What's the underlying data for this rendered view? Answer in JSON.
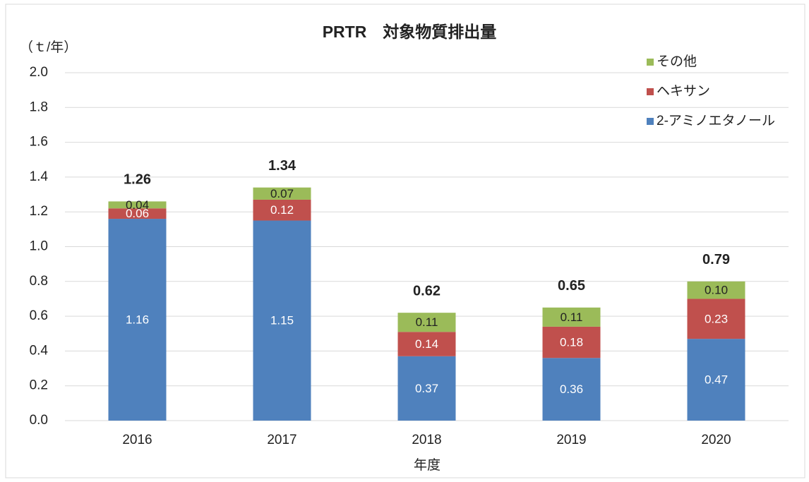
{
  "chart_data": {
    "type": "stacked_bar",
    "title": "PRTR　対象物質排出量",
    "y_label": "（ｔ/年）",
    "x_label": "年度",
    "categories": [
      "2016",
      "2017",
      "2018",
      "2019",
      "2020"
    ],
    "series": [
      {
        "name": "2-アミノエタノール",
        "color": "#4f81bd",
        "values": [
          1.16,
          1.15,
          0.37,
          0.36,
          0.47
        ]
      },
      {
        "name": "ヘキサン",
        "color": "#c0504d",
        "values": [
          0.06,
          0.12,
          0.14,
          0.18,
          0.23
        ]
      },
      {
        "name": "その他",
        "color": "#9bbb59",
        "values": [
          0.04,
          0.07,
          0.11,
          0.11,
          0.1
        ],
        "value_labels": [
          "0.04",
          "0.07",
          "0.11",
          "0.11",
          "0.10"
        ]
      }
    ],
    "totals": [
      1.26,
      1.34,
      0.62,
      0.65,
      0.79
    ],
    "ylim": [
      0,
      2
    ],
    "yticks": [
      {
        "value": 0,
        "label": "0.0"
      },
      {
        "value": 0.2,
        "label": "0.2"
      },
      {
        "value": 0.4,
        "label": "0.4"
      },
      {
        "value": 0.6,
        "label": "0.6"
      },
      {
        "value": 0.8,
        "label": "0.8"
      },
      {
        "value": 1,
        "label": "1.0"
      },
      {
        "value": 1.2,
        "label": "1.2"
      },
      {
        "value": 1.4,
        "label": "1.4"
      },
      {
        "value": 1.6,
        "label": "1.6"
      },
      {
        "value": 1.8,
        "label": "1.8"
      },
      {
        "value": 2,
        "label": "2.0"
      }
    ],
    "grid": true,
    "legend_position": "upper right"
  }
}
